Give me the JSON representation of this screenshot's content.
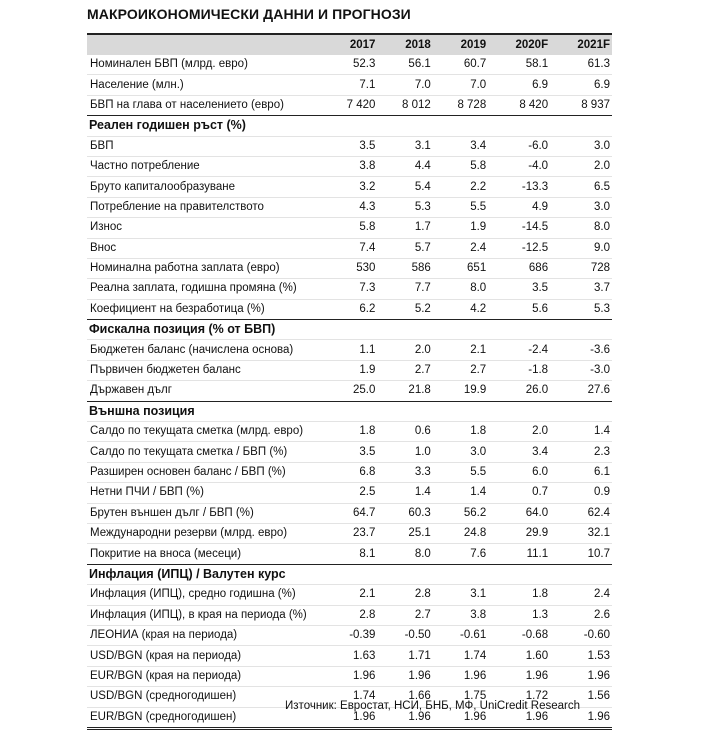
{
  "title": "МАКРОИКОНОМИЧЕСКИ ДАННИ И ПРОГНОЗИ",
  "columns": [
    "2017",
    "2018",
    "2019",
    "2020F",
    "2021F"
  ],
  "sections": [
    {
      "header": null,
      "rows": [
        {
          "label": "Номинален БВП (млрд. евро)",
          "values": [
            "52.3",
            "56.1",
            "60.7",
            "58.1",
            "61.3"
          ]
        },
        {
          "label": "Население (млн.)",
          "values": [
            "7.1",
            "7.0",
            "7.0",
            "6.9",
            "6.9"
          ]
        },
        {
          "label": "БВП на глава от населението (евро)",
          "values": [
            "7 420",
            "8 012",
            "8 728",
            "8 420",
            "8 937"
          ]
        }
      ]
    },
    {
      "header": "Реален годишен ръст (%)",
      "rows": [
        {
          "label": "БВП",
          "values": [
            "3.5",
            "3.1",
            "3.4",
            "-6.0",
            "3.0"
          ]
        },
        {
          "label": "Частно потребление",
          "values": [
            "3.8",
            "4.4",
            "5.8",
            "-4.0",
            "2.0"
          ]
        },
        {
          "label": "Бруто капиталообразуване",
          "values": [
            "3.2",
            "5.4",
            "2.2",
            "-13.3",
            "6.5"
          ]
        },
        {
          "label": "Потребление на правителството",
          "values": [
            "4.3",
            "5.3",
            "5.5",
            "4.9",
            "3.0"
          ]
        },
        {
          "label": "Износ",
          "values": [
            "5.8",
            "1.7",
            "1.9",
            "-14.5",
            "8.0"
          ]
        },
        {
          "label": "Внос",
          "values": [
            "7.4",
            "5.7",
            "2.4",
            "-12.5",
            "9.0"
          ]
        },
        {
          "label": "Номинална работна заплата (евро)",
          "values": [
            "530",
            "586",
            "651",
            "686",
            "728"
          ]
        },
        {
          "label": "Реална заплата, годишна промяна (%)",
          "values": [
            "7.3",
            "7.7",
            "8.0",
            "3.5",
            "3.7"
          ]
        },
        {
          "label": "Коефициент на безработица (%)",
          "values": [
            "6.2",
            "5.2",
            "4.2",
            "5.6",
            "5.3"
          ]
        }
      ]
    },
    {
      "header": "Фискална позиция (% от БВП)",
      "rows": [
        {
          "label": "Бюджетен баланс (начислена основа)",
          "values": [
            "1.1",
            "2.0",
            "2.1",
            "-2.4",
            "-3.6"
          ]
        },
        {
          "label": "Първичен бюджетен баланс",
          "values": [
            "1.9",
            "2.7",
            "2.7",
            "-1.8",
            "-3.0"
          ]
        },
        {
          "label": "Държавен дълг",
          "values": [
            "25.0",
            "21.8",
            "19.9",
            "26.0",
            "27.6"
          ]
        }
      ]
    },
    {
      "header": "Външна позиция",
      "rows": [
        {
          "label": "Салдо по текущата сметка (млрд. евро)",
          "values": [
            "1.8",
            "0.6",
            "1.8",
            "2.0",
            "1.4"
          ]
        },
        {
          "label": "Салдо по текущата сметка / БВП (%)",
          "values": [
            "3.5",
            "1.0",
            "3.0",
            "3.4",
            "2.3"
          ]
        },
        {
          "label": "Разширен основен баланс / БВП (%)",
          "values": [
            "6.8",
            "3.3",
            "5.5",
            "6.0",
            "6.1"
          ]
        },
        {
          "label": "Нетни ПЧИ / БВП (%)",
          "values": [
            "2.5",
            "1.4",
            "1.4",
            "0.7",
            "0.9"
          ]
        },
        {
          "label": "Брутен външен дълг / БВП (%)",
          "values": [
            "64.7",
            "60.3",
            "56.2",
            "64.0",
            "62.4"
          ]
        },
        {
          "label": "Международни резерви (млрд. евро)",
          "values": [
            "23.7",
            "25.1",
            "24.8",
            "29.9",
            "32.1"
          ]
        },
        {
          "label": "Покритие на вноса (месеци)",
          "values": [
            "8.1",
            "8.0",
            "7.6",
            "11.1",
            "10.7"
          ]
        }
      ]
    },
    {
      "header": "Инфлация (ИПЦ) / Валутен курс",
      "rows": [
        {
          "label": "Инфлация (ИПЦ), средно годишна (%)",
          "values": [
            "2.1",
            "2.8",
            "3.1",
            "1.8",
            "2.4"
          ]
        },
        {
          "label": "Инфлация (ИПЦ), в края на периода (%)",
          "values": [
            "2.8",
            "2.7",
            "3.8",
            "1.3",
            "2.6"
          ]
        },
        {
          "label": "ЛЕОНИА (края на периода)",
          "values": [
            "-0.39",
            "-0.50",
            "-0.61",
            "-0.68",
            "-0.60"
          ]
        },
        {
          "label": "USD/BGN (края на периода)",
          "values": [
            "1.63",
            "1.71",
            "1.74",
            "1.60",
            "1.53"
          ]
        },
        {
          "label": "EUR/BGN (края на периода)",
          "values": [
            "1.96",
            "1.96",
            "1.96",
            "1.96",
            "1.96"
          ]
        },
        {
          "label": "USD/BGN (средногодишен)",
          "values": [
            "1.74",
            "1.66",
            "1.75",
            "1.72",
            "1.56"
          ]
        },
        {
          "label": "EUR/BGN (средногодишен)",
          "values": [
            "1.96",
            "1.96",
            "1.96",
            "1.96",
            "1.96"
          ]
        }
      ]
    }
  ],
  "source": "Източник: Евростат, НСИ, БНБ, МФ, UniCredit Research"
}
